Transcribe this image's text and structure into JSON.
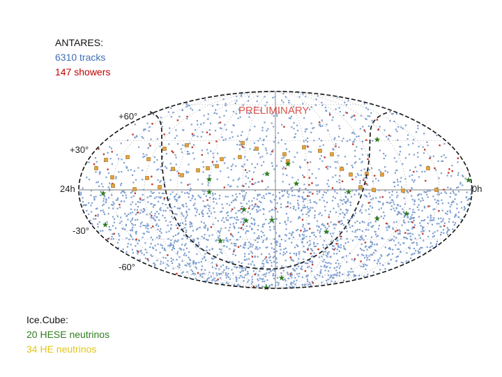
{
  "antares": {
    "title": "ANTARES:",
    "tracks": "6310 tracks",
    "showers": "147 showers"
  },
  "icecube": {
    "title": "Ice.Cube:",
    "hese": "20 HESE neutrinos",
    "he": "34 HE neutrinos"
  },
  "map": {
    "watermark": "PRELIMINARY",
    "lat_labels": [
      "+60°",
      "+30°",
      "-30°",
      "-60°"
    ],
    "lon_left": "24h",
    "lon_right": "0h"
  },
  "colors": {
    "tracks": "#7f9fcf",
    "showers": "#c0392b",
    "hese": "#2e7d1e",
    "he": "#e6a23c"
  }
}
